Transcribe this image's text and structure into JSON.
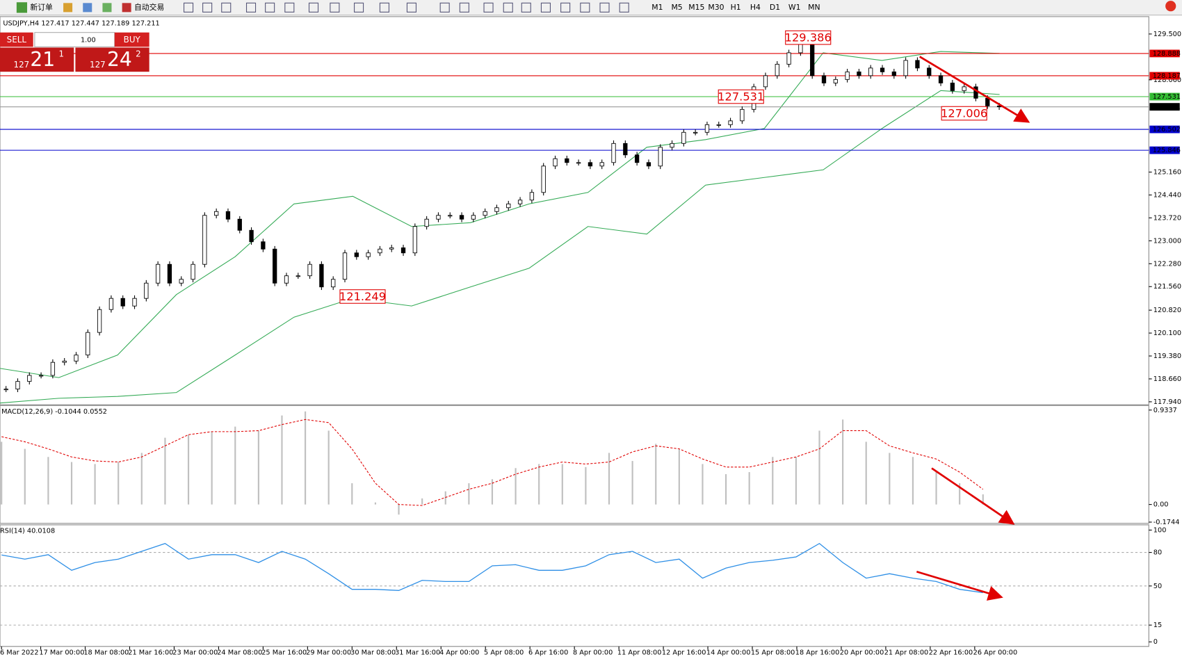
{
  "toolbar": {
    "new_order": "新订单",
    "auto_trading": "自动交易",
    "timeframes": [
      "M1",
      "M5",
      "M15",
      "M30",
      "H1",
      "H4",
      "D1",
      "W1",
      "MN"
    ]
  },
  "trade_panel": {
    "sell": "SELL",
    "lots": "1.00",
    "buy": "BUY",
    "sell_price": [
      "127",
      "21",
      "1"
    ],
    "buy_price": [
      "127",
      "24",
      "2"
    ]
  },
  "main_chart": {
    "header": "USDJPY,H4 127.417 127.447 127.189 127.211",
    "ylim": [
      117.87,
      129.975
    ],
    "yticks": [
      {
        "value": 129.5,
        "label": "129.500"
      },
      {
        "value": 128.06,
        "label": "128.060"
      },
      {
        "value": 125.16,
        "label": "125.160"
      },
      {
        "value": 124.44,
        "label": "124.440"
      },
      {
        "value": 123.72,
        "label": "123.720"
      },
      {
        "value": 123,
        "label": "123.000"
      },
      {
        "value": 122.28,
        "label": "122.280"
      },
      {
        "value": 121.56,
        "label": "121.560"
      },
      {
        "value": 120.82,
        "label": "120.820"
      },
      {
        "value": 120.1,
        "label": "120.100"
      },
      {
        "value": 119.38,
        "label": "119.380"
      },
      {
        "value": 118.66,
        "label": "118.660"
      },
      {
        "value": 117.94,
        "label": "117.940"
      }
    ],
    "levels": [
      {
        "value": 128.888,
        "color": "#e00000"
      },
      {
        "value": 128.187,
        "color": "#e00000"
      },
      {
        "value": 127.531,
        "color": "#33bb33"
      },
      {
        "value": 127.211,
        "color": "#000000"
      },
      {
        "value": 126.502,
        "color": "#0000cc"
      },
      {
        "value": 125.846,
        "color": "#0000cc"
      }
    ],
    "annotations": [
      129.386,
      127.531,
      127.006,
      121.249
    ],
    "closes": [
      118.34,
      118.58,
      118.77,
      118.77,
      119.18,
      119.22,
      119.41,
      120.12,
      120.84,
      121.19,
      120.95,
      121.19,
      121.67,
      122.26,
      121.67,
      121.79,
      122.26,
      123.8,
      123.92,
      123.68,
      123.33,
      122.97,
      122.74,
      121.67,
      121.9,
      121.9,
      122.26,
      121.55,
      121.79,
      122.62,
      122.5,
      122.62,
      122.74,
      122.78,
      122.62,
      123.45,
      123.68,
      123.8,
      123.8,
      123.68,
      123.8,
      123.92,
      124.04,
      124.16,
      124.28,
      124.52,
      125.35,
      125.58,
      125.46,
      125.46,
      125.35,
      125.46,
      126.06,
      125.7,
      125.46,
      125.35,
      125.94,
      126.06,
      126.41,
      126.41,
      126.65,
      126.65,
      126.77,
      127.13,
      127.84,
      128.19,
      128.55,
      128.91,
      129.26,
      128.19,
      127.96,
      128.07,
      128.31,
      128.19,
      128.43,
      128.31,
      128.19,
      128.67,
      128.43,
      128.19,
      127.96,
      127.72,
      127.84,
      127.48,
      127.24,
      127.21
    ],
    "bands_upper": [
      118.99,
      118.7,
      119.41,
      121.31,
      122.5,
      124.16,
      124.4,
      123.45,
      123.57,
      124.16,
      124.52,
      125.94,
      126.18,
      126.53,
      128.91,
      128.67,
      128.95,
      128.89
    ],
    "bands_lower": [
      117.9,
      118.05,
      118.11,
      118.23,
      119.41,
      120.6,
      121.19,
      120.95,
      121.55,
      122.14,
      123.45,
      123.21,
      124.75,
      124.99,
      125.23,
      126.53,
      127.72,
      127.6
    ],
    "color": "#33aa55"
  },
  "macd": {
    "label": "MACD(12,26,9) -0.1044 0.0552",
    "ylim": [
      -0.179,
      0.971
    ],
    "yticks": [
      0.9337,
      {
        "value": 0,
        "label": "0.00"
      },
      -0.1744
    ],
    "histogram": [
      0.62,
      0.55,
      0.47,
      0.42,
      0.4,
      0.42,
      0.51,
      0.66,
      0.69,
      0.72,
      0.77,
      0.73,
      0.88,
      0.92,
      0.73,
      0.21,
      0.02,
      -0.1,
      0.06,
      0.13,
      0.21,
      0.25,
      0.36,
      0.4,
      0.4,
      0.37,
      0.51,
      0.43,
      0.6,
      0.55,
      0.4,
      0.3,
      0.32,
      0.47,
      0.47,
      0.73,
      0.84,
      0.62,
      0.51,
      0.47,
      0.32,
      0.21,
      0.1
    ],
    "signal": [
      0.67,
      0.62,
      0.55,
      0.47,
      0.43,
      0.42,
      0.47,
      0.58,
      0.69,
      0.72,
      0.72,
      0.73,
      0.79,
      0.84,
      0.81,
      0.55,
      0.21,
      0,
      -0.01,
      0.07,
      0.15,
      0.21,
      0.3,
      0.37,
      0.42,
      0.4,
      0.42,
      0.52,
      0.58,
      0.55,
      0.45,
      0.37,
      0.37,
      0.42,
      0.47,
      0.55,
      0.73,
      0.73,
      0.58,
      0.51,
      0.45,
      0.32,
      0.15
    ],
    "histogram_color": "#c0c0c0",
    "signal_color": "#e00000"
  },
  "rsi": {
    "label": "RSI(14) 40.0108",
    "ylim": [
      -3.4,
      104
    ],
    "yticks": [
      100,
      80,
      50,
      15,
      0
    ],
    "values": [
      77.7,
      74,
      78,
      64,
      71,
      74,
      81,
      88,
      74,
      78,
      78,
      71,
      81,
      74,
      61,
      47,
      47,
      46,
      55,
      54,
      54,
      68,
      69,
      64,
      64,
      68,
      78,
      81,
      71,
      74,
      57,
      66,
      71,
      73,
      76,
      88,
      71,
      57,
      61,
      57,
      54,
      47,
      44
    ],
    "color": "#2e8fe6"
  },
  "time_axis": [
    "6 Mar 2022",
    "17 Mar 00:00",
    "18 Mar 08:00",
    "21 Mar 16:00",
    "23 Mar 00:00",
    "24 Mar 08:00",
    "25 Mar 16:00",
    "29 Mar 00:00",
    "30 Mar 08:00",
    "31 Mar 16:00",
    "4 Apr 00:00",
    "5 Apr 08:00",
    "6 Apr 16:00",
    "8 Apr 00:00",
    "11 Apr 08:00",
    "12 Apr 16:00",
    "14 Apr 00:00",
    "15 Apr 08:00",
    "18 Apr 16:00",
    "20 Apr 00:00",
    "21 Apr 08:00",
    "22 Apr 16:00",
    "26 Apr 00:00"
  ]
}
